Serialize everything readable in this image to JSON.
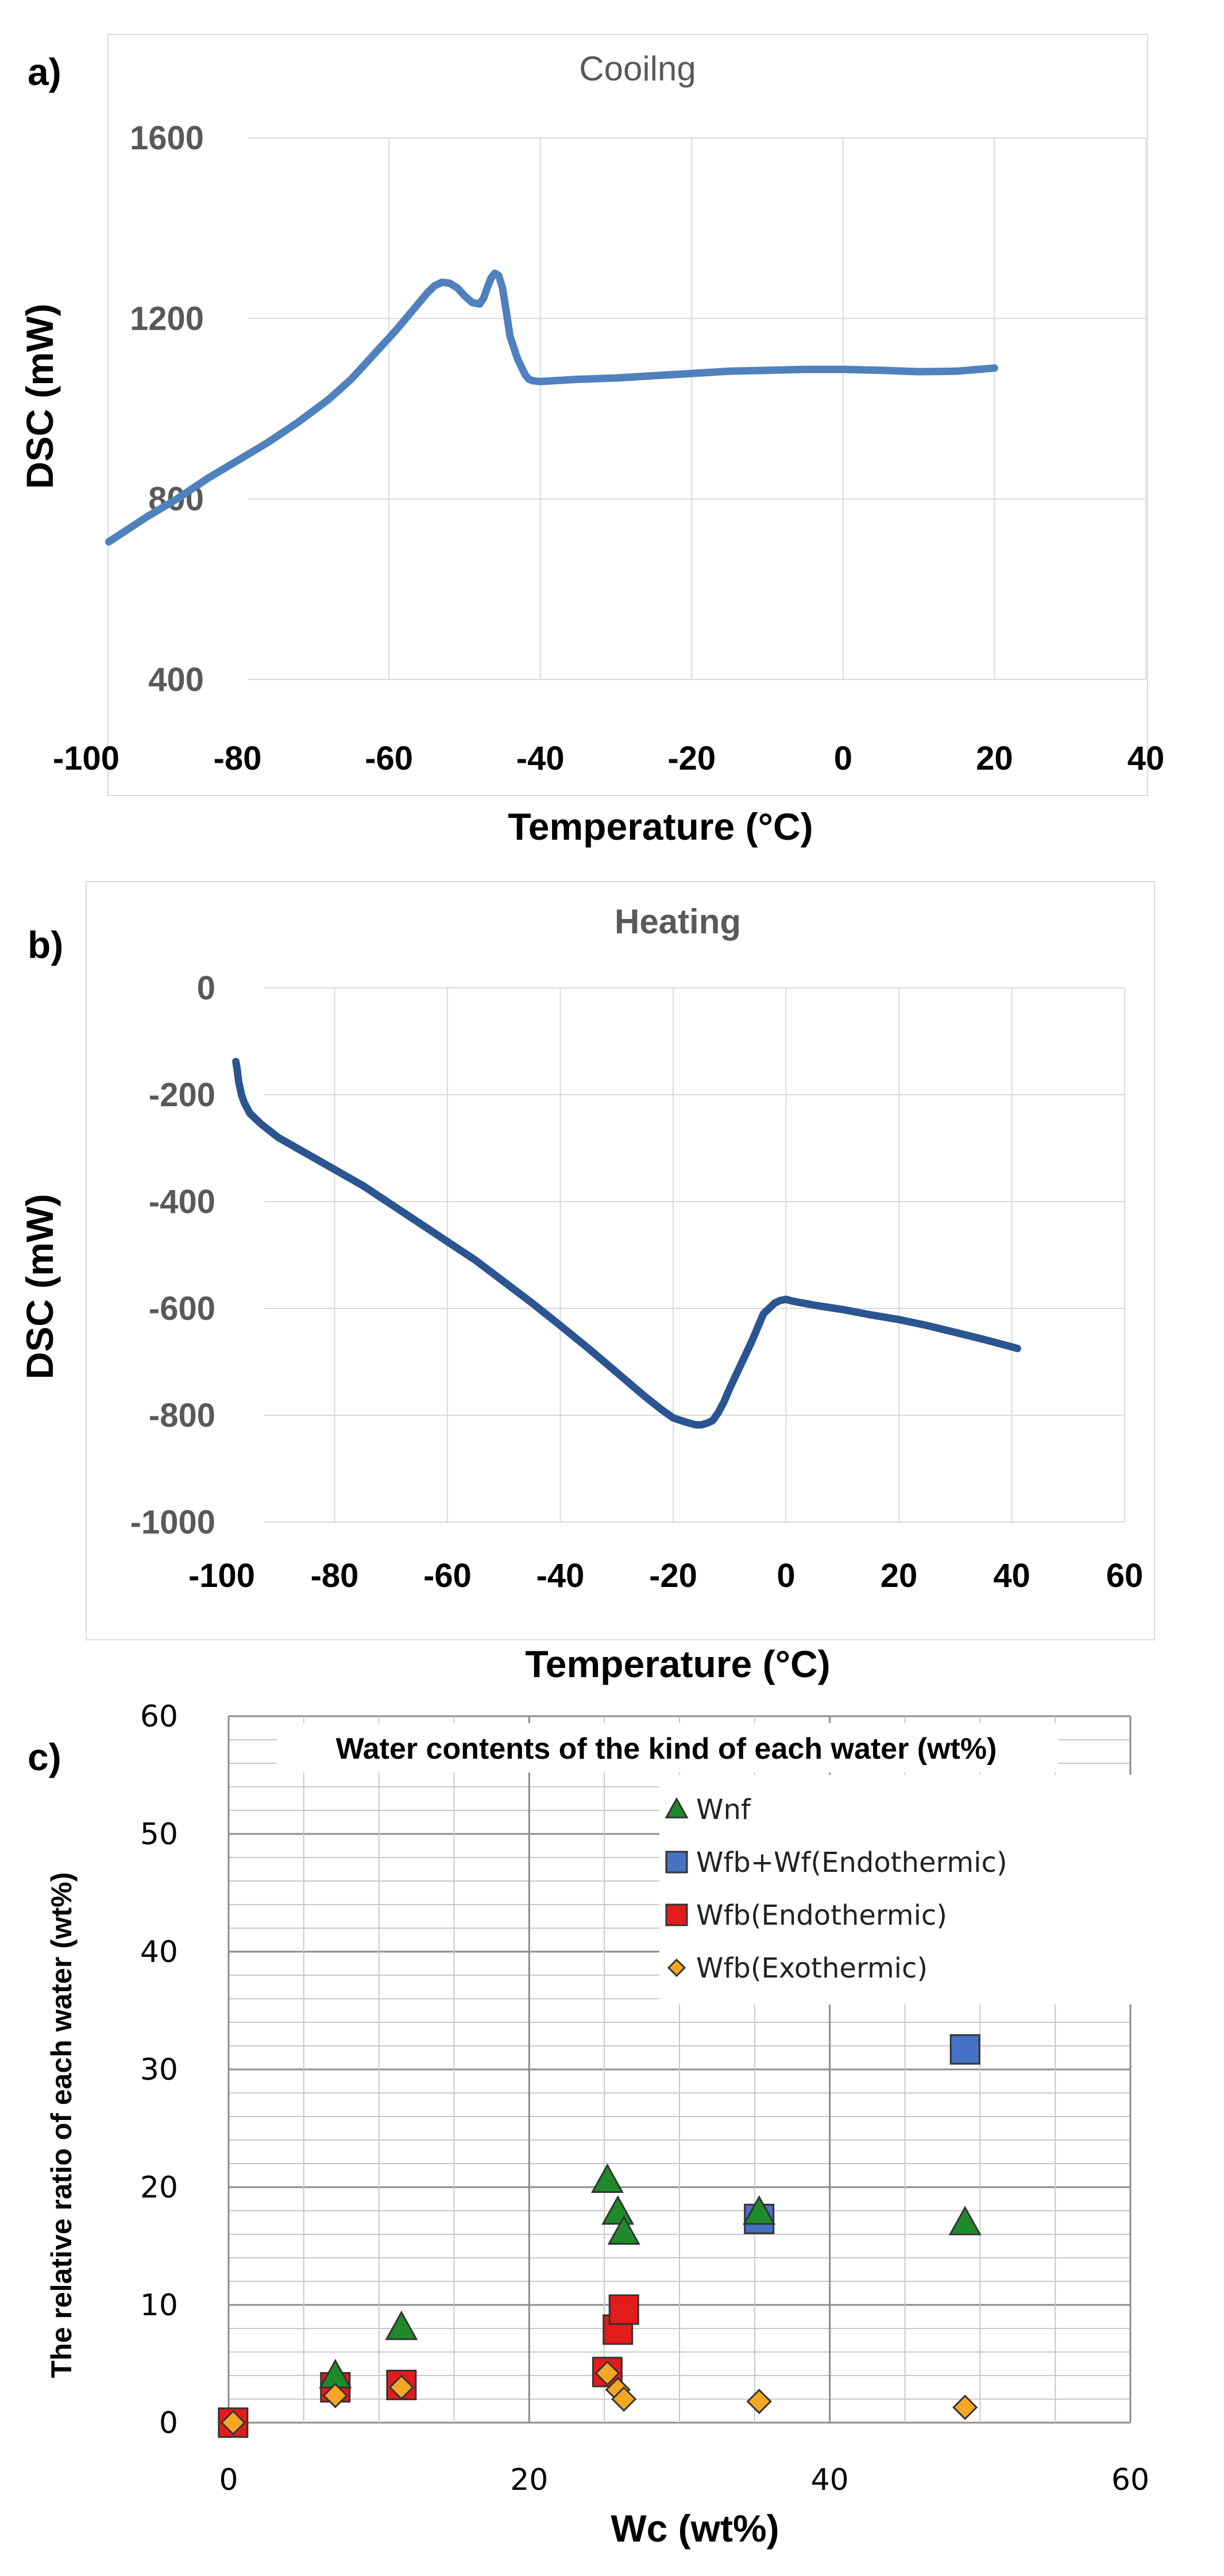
{
  "figure": {
    "panel_a_label": "a)",
    "panel_b_label": "b)",
    "panel_c_label": "c)"
  },
  "chart_data": [
    {
      "id": "a",
      "type": "line",
      "title": "Cooilng",
      "xlabel": "Temperature (°C)",
      "ylabel": "DSC (mW)",
      "xlim": [
        -100,
        40
      ],
      "ylim": [
        400,
        1600
      ],
      "xticks": [
        "-100",
        "-80",
        "-60",
        "-40",
        "-20",
        "0",
        "20",
        "40"
      ],
      "yticks": [
        "400",
        "800",
        "1200",
        "1600"
      ],
      "grid": true,
      "line_color": "#4f81bd",
      "series": [
        {
          "x": [
            -97,
            -92,
            -88,
            -84,
            -80,
            -76,
            -72,
            -68,
            -65,
            -62,
            -59,
            -57,
            -55,
            -54,
            -53,
            -52,
            -51,
            -50,
            -49,
            -48,
            -47.5,
            -47,
            -46.5,
            -46,
            -45.5,
            -45,
            -44.5,
            -44,
            -43,
            -42,
            -41.5,
            -41,
            -40,
            -35,
            -30,
            -25,
            -20,
            -15,
            -10,
            -5,
            0,
            5,
            10,
            15,
            20
          ],
          "y": [
            705,
            760,
            800,
            845,
            885,
            925,
            970,
            1020,
            1065,
            1120,
            1175,
            1215,
            1255,
            1272,
            1280,
            1278,
            1268,
            1250,
            1235,
            1232,
            1245,
            1268,
            1290,
            1300,
            1295,
            1268,
            1215,
            1160,
            1110,
            1075,
            1065,
            1062,
            1060,
            1065,
            1068,
            1073,
            1078,
            1083,
            1085,
            1087,
            1087,
            1085,
            1082,
            1083,
            1090
          ]
        }
      ]
    },
    {
      "id": "b",
      "type": "line",
      "title": "Heating",
      "xlabel": "Temperature (°C)",
      "ylabel": "DSC (mW)",
      "xlim": [
        -100,
        60
      ],
      "ylim": [
        -1000,
        0
      ],
      "xticks": [
        "-100",
        "-80",
        "-60",
        "-40",
        "-20",
        "0",
        "20",
        "40",
        "60"
      ],
      "yticks": [
        "-1000",
        "-800",
        "-600",
        "-400",
        "-200",
        "0"
      ],
      "grid": true,
      "line_color": "#2b5590",
      "series": [
        {
          "x": [
            -97.5,
            -97.3,
            -97,
            -96.5,
            -96,
            -95,
            -93,
            -90,
            -85,
            -80,
            -75,
            -70,
            -65,
            -60,
            -55,
            -50,
            -45,
            -40,
            -35,
            -30,
            -25,
            -22,
            -20,
            -18,
            -16,
            -15,
            -14,
            -13,
            -12,
            -11,
            -10,
            -8,
            -6,
            -4,
            -2,
            -1,
            0,
            1,
            3,
            5,
            10,
            15,
            20,
            25,
            30,
            35,
            40,
            41
          ],
          "y": [
            -138,
            -150,
            -175,
            -200,
            -215,
            -235,
            -255,
            -280,
            -310,
            -340,
            -370,
            -405,
            -440,
            -475,
            -510,
            -550,
            -590,
            -632,
            -675,
            -720,
            -765,
            -790,
            -805,
            -812,
            -818,
            -818,
            -815,
            -810,
            -795,
            -775,
            -750,
            -705,
            -660,
            -610,
            -590,
            -585,
            -583,
            -586,
            -590,
            -594,
            -602,
            -612,
            -621,
            -632,
            -645,
            -658,
            -672,
            -675
          ]
        }
      ]
    },
    {
      "id": "c",
      "type": "scatter",
      "title": "Water contents of the kind of each water (wt%)",
      "xlabel": "Wc (wt%)",
      "ylabel": "The relative ratio of each water (wt%)",
      "xlim": [
        0,
        60
      ],
      "ylim": [
        0,
        60
      ],
      "xticks": [
        "0",
        "20",
        "40",
        "60"
      ],
      "yticks": [
        "0",
        "10",
        "20",
        "30",
        "40",
        "50",
        "60"
      ],
      "grid": true,
      "legend_position": "top-right",
      "series": [
        {
          "name": "Wnf",
          "marker": "triangle",
          "color": "#1f8a2a",
          "x": [
            7.1,
            11.5,
            25.2,
            25.9,
            26.3,
            35.3,
            49.0
          ],
          "y": [
            4.0,
            8.1,
            20.6,
            17.9,
            16.2,
            17.9,
            17.0
          ]
        },
        {
          "name": "Wfb+Wf(Endothermic)",
          "marker": "square",
          "color": "#4472c4",
          "x": [
            35.3,
            49.0
          ],
          "y": [
            17.3,
            31.7
          ]
        },
        {
          "name": "Wfb(Endothermic)",
          "marker": "square",
          "color": "#e31b1b",
          "x": [
            0.3,
            7.1,
            11.5,
            25.2,
            25.9,
            26.3
          ],
          "y": [
            0.0,
            3.0,
            3.2,
            4.3,
            7.9,
            9.6
          ]
        },
        {
          "name": "Wfb(Exothermic)",
          "marker": "diamond",
          "color": "#f5a623",
          "x": [
            0.3,
            7.1,
            11.5,
            25.2,
            25.9,
            26.3,
            35.3,
            49.0
          ],
          "y": [
            0.0,
            2.3,
            3.0,
            4.2,
            2.8,
            2.0,
            1.8,
            1.3
          ]
        }
      ]
    }
  ]
}
